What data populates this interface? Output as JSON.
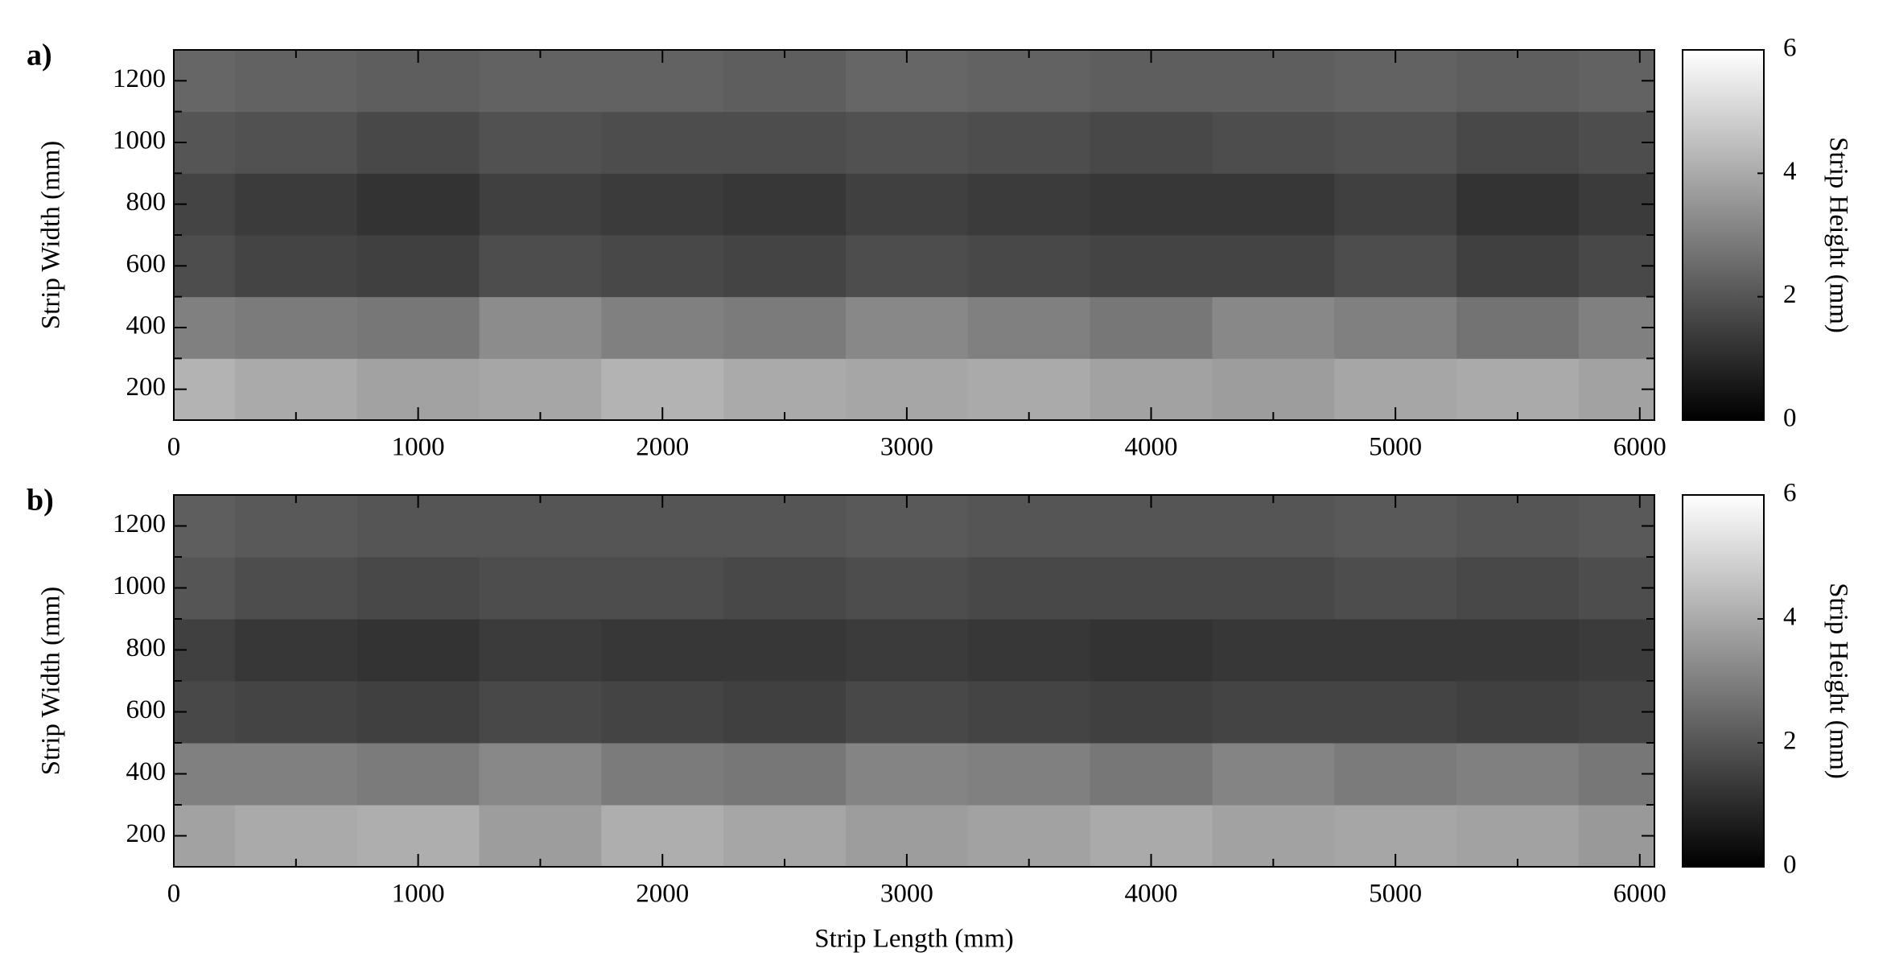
{
  "chart_data": [
    {
      "type": "heatmap",
      "label": "a)",
      "ylabel": "Strip Width (mm)",
      "cmap": "gray",
      "x": [
        0,
        500,
        1000,
        1500,
        2000,
        2500,
        3000,
        3500,
        4000,
        4500,
        5000,
        5500,
        6000
      ],
      "y": [
        200,
        400,
        600,
        800,
        1000,
        1200
      ],
      "z": [
        [
          4.2,
          4.0,
          3.8,
          3.9,
          4.2,
          4.0,
          3.9,
          4.0,
          3.8,
          3.7,
          3.9,
          4.0,
          3.8
        ],
        [
          3.0,
          2.9,
          2.8,
          3.3,
          3.0,
          2.9,
          3.2,
          3.0,
          2.8,
          3.2,
          3.0,
          2.7,
          3.0
        ],
        [
          1.8,
          1.6,
          1.5,
          1.8,
          1.7,
          1.6,
          1.8,
          1.7,
          1.6,
          1.6,
          1.8,
          1.5,
          1.7
        ],
        [
          1.6,
          1.4,
          1.2,
          1.5,
          1.4,
          1.3,
          1.5,
          1.4,
          1.3,
          1.3,
          1.5,
          1.2,
          1.4
        ],
        [
          2.0,
          1.9,
          1.7,
          1.9,
          1.8,
          1.8,
          1.9,
          1.8,
          1.7,
          1.8,
          1.9,
          1.7,
          1.8
        ],
        [
          2.4,
          2.3,
          2.2,
          2.3,
          2.3,
          2.2,
          2.4,
          2.3,
          2.2,
          2.2,
          2.3,
          2.2,
          2.3
        ]
      ],
      "xlim": [
        0,
        6060
      ],
      "ylim": [
        100,
        1300
      ],
      "xticks": [
        0,
        1000,
        2000,
        3000,
        4000,
        5000,
        6000
      ],
      "xminorticks": [
        500,
        1500,
        2500,
        3500,
        4500,
        5500
      ],
      "yticks": [
        200,
        400,
        600,
        800,
        1000,
        1200
      ],
      "yminorticks": [
        300,
        500,
        700,
        900,
        1100
      ],
      "colorbar": {
        "label": "Strip Height (mm)",
        "lim": [
          0,
          6
        ],
        "ticks": [
          0,
          2,
          4,
          6
        ]
      }
    },
    {
      "type": "heatmap",
      "label": "b)",
      "ylabel": "Strip Width (mm)",
      "xlabel": "Strip Length (mm)",
      "cmap": "gray",
      "x": [
        0,
        500,
        1000,
        1500,
        2000,
        2500,
        3000,
        3500,
        4000,
        4500,
        5000,
        5500,
        6000
      ],
      "y": [
        200,
        400,
        600,
        800,
        1000,
        1200
      ],
      "z": [
        [
          3.8,
          4.0,
          4.1,
          3.7,
          4.1,
          3.9,
          3.7,
          3.8,
          4.0,
          3.8,
          3.9,
          3.8,
          3.6
        ],
        [
          3.0,
          3.0,
          2.9,
          3.2,
          2.9,
          2.8,
          3.1,
          3.0,
          2.8,
          3.1,
          2.9,
          3.0,
          2.8
        ],
        [
          1.7,
          1.6,
          1.5,
          1.7,
          1.6,
          1.5,
          1.7,
          1.6,
          1.5,
          1.6,
          1.6,
          1.5,
          1.6
        ],
        [
          1.5,
          1.3,
          1.2,
          1.4,
          1.3,
          1.3,
          1.4,
          1.3,
          1.2,
          1.3,
          1.3,
          1.3,
          1.4
        ],
        [
          2.0,
          1.8,
          1.7,
          1.8,
          1.8,
          1.7,
          1.8,
          1.7,
          1.7,
          1.7,
          1.8,
          1.7,
          1.8
        ],
        [
          2.2,
          2.1,
          2.0,
          2.0,
          2.0,
          2.0,
          2.1,
          2.0,
          2.0,
          2.0,
          2.1,
          2.0,
          2.1
        ]
      ],
      "xlim": [
        0,
        6060
      ],
      "ylim": [
        100,
        1300
      ],
      "xticks": [
        0,
        1000,
        2000,
        3000,
        4000,
        5000,
        6000
      ],
      "xminorticks": [
        500,
        1500,
        2500,
        3500,
        4500,
        5500
      ],
      "yticks": [
        200,
        400,
        600,
        800,
        1000,
        1200
      ],
      "yminorticks": [
        300,
        500,
        700,
        900,
        1100
      ],
      "colorbar": {
        "label": "Strip Height (mm)",
        "lim": [
          0,
          6
        ],
        "ticks": [
          0,
          2,
          4,
          6
        ]
      }
    }
  ]
}
